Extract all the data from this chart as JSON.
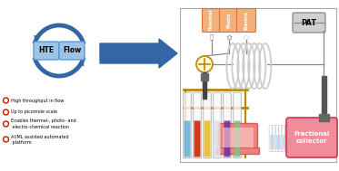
{
  "bg_color": "#ffffff",
  "blue": "#3465a4",
  "blue_light": "#9dc3e6",
  "blue_mid": "#5b9bd5",
  "orange_box": "#e07030",
  "orange_fill": "#f4b07a",
  "gray_pat": "#909090",
  "gray_pat_fill": "#d0d0d0",
  "red_frac": "#d04060",
  "pink_frac": "#f08090",
  "bullet_red": "#cc2200",
  "tube_colors": [
    "#6baed6",
    "#cc2200",
    "#e7ba20",
    "#e0e0e0",
    "#7030a0",
    "#80c080"
  ],
  "laptop_pink": "#f08080",
  "hte_label": "HTE",
  "flow_label": "Flow",
  "box_labels": [
    "Thermal",
    "Photo",
    "Electro"
  ],
  "pat_label": "PAT",
  "frac_label": "Fractional\ncollector",
  "bullets": [
    "High throughput in flow",
    "Up to picomole scale",
    "Enables thermal-, photo- and\n electro-chemical reaction",
    "AI/ML assisted automated\n platform"
  ]
}
